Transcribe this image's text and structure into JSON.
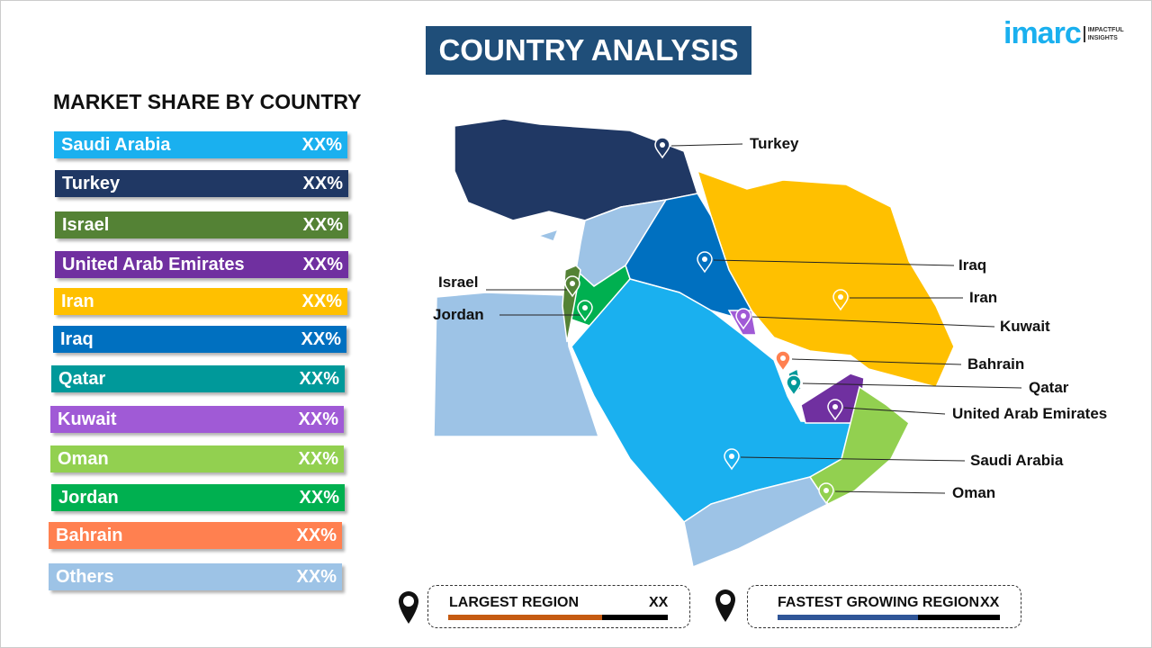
{
  "header": {
    "title": "COUNTRY ANALYSIS",
    "logo": "imarc",
    "logo_tag": "IMPACTFUL INSIGHTS"
  },
  "sidebar": {
    "heading": "MARKET SHARE BY COUNTRY",
    "items": [
      {
        "label": "Saudi Arabia",
        "value": "XX%",
        "color": "#1ab0ef"
      },
      {
        "label": "Turkey",
        "value": "XX%",
        "color": "#203864"
      },
      {
        "label": "Israel",
        "value": "XX%",
        "color": "#548235"
      },
      {
        "label": "United Arab Emirates",
        "value": "XX%",
        "color": "#7030a0"
      },
      {
        "label": "Iran",
        "value": "XX%",
        "color": "#ffc000"
      },
      {
        "label": "Iraq",
        "value": "XX%",
        "color": "#0070c0"
      },
      {
        "label": "Qatar",
        "value": "XX%",
        "color": "#00999a"
      },
      {
        "label": "Kuwait",
        "value": "XX%",
        "color": "#a05ad6"
      },
      {
        "label": "Oman",
        "value": "XX%",
        "color": "#92d050"
      },
      {
        "label": "Jordan",
        "value": "XX%",
        "color": "#00b050"
      },
      {
        "label": "Bahrain",
        "value": "XX%",
        "color": "#ff8050"
      },
      {
        "label": "Others",
        "value": "XX%",
        "color": "#9dc3e6"
      }
    ]
  },
  "map_labels": {
    "turkey": "Turkey",
    "iraq": "Iraq",
    "iran": "Iran",
    "kuwait": "Kuwait",
    "bahrain": "Bahrain",
    "qatar": "Qatar",
    "uae": "United Arab Emirates",
    "saudi": "Saudi Arabia",
    "oman": "Oman",
    "israel": "Israel",
    "jordan": "Jordan"
  },
  "footer": {
    "largest": {
      "label": "LARGEST REGION",
      "value": "XX",
      "color": "#c55a11",
      "fill_pct": 70
    },
    "fastest": {
      "label": "FASTEST GROWING REGION",
      "value": "XX",
      "color": "#2f5597",
      "fill_pct": 63
    }
  }
}
